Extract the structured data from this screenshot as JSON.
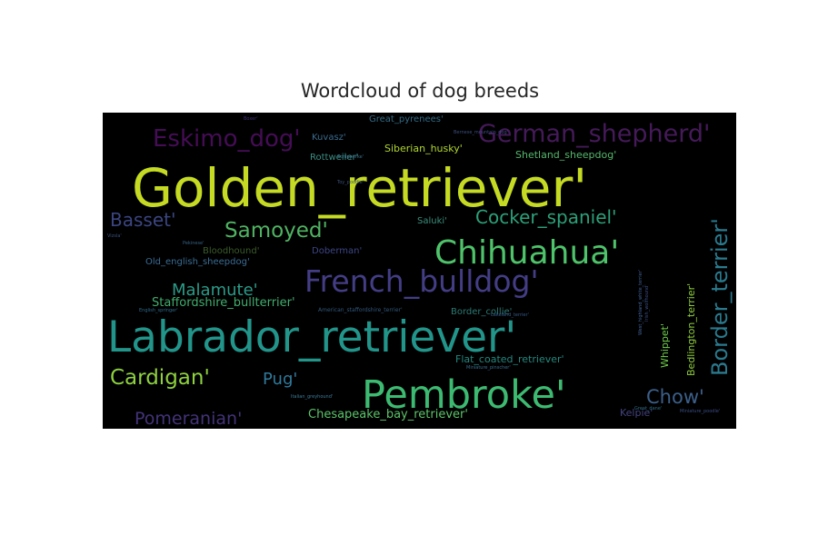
{
  "title": "Wordcloud of dog breeds",
  "colors": {
    "background": "#000000",
    "title": "#262626"
  },
  "chart_data": {
    "type": "wordcloud",
    "title": "Wordcloud of dog breeds",
    "words": [
      {
        "text": "Golden_retriever'",
        "weight": 1.0,
        "color": "#c4da23"
      },
      {
        "text": "Labrador_retriever'",
        "weight": 0.86,
        "color": "#22958b"
      },
      {
        "text": "Pembroke'",
        "weight": 0.74,
        "color": "#3dba71"
      },
      {
        "text": "Chihuahua'",
        "weight": 0.56,
        "color": "#4ec36a"
      },
      {
        "text": "French_bulldog'",
        "weight": 0.54,
        "color": "#433d85"
      },
      {
        "text": "German_shepherd'",
        "weight": 0.44,
        "color": "#451a59"
      },
      {
        "text": "Eskimo_dog'",
        "weight": 0.42,
        "color": "#450d55"
      },
      {
        "text": "Border_terrier'",
        "weight": 0.39,
        "color": "#2a7a8e"
      },
      {
        "text": "Samoyed'",
        "weight": 0.36,
        "color": "#4fb362"
      },
      {
        "text": "Cardigan'",
        "weight": 0.36,
        "color": "#8ed13f"
      },
      {
        "text": "Chow'",
        "weight": 0.33,
        "color": "#3b5f8a"
      },
      {
        "text": "Basset'",
        "weight": 0.32,
        "color": "#3a4580"
      },
      {
        "text": "Cocker_spaniel'",
        "weight": 0.31,
        "color": "#2ca07a"
      },
      {
        "text": "Pomeranian'",
        "weight": 0.3,
        "color": "#433378"
      },
      {
        "text": "Malamute'",
        "weight": 0.28,
        "color": "#2b9b88"
      },
      {
        "text": "Pug'",
        "weight": 0.28,
        "color": "#2f7a9c"
      },
      {
        "text": "Staffordshire_bullterrier'",
        "weight": 0.2,
        "color": "#41ad6e"
      },
      {
        "text": "Chesapeake_bay_retriever'",
        "weight": 0.2,
        "color": "#5cc46a"
      },
      {
        "text": "Bedlington_terrier'",
        "weight": 0.18,
        "color": "#90cf3c"
      },
      {
        "text": "Flat_coated_retriever'",
        "weight": 0.17,
        "color": "#23887e"
      },
      {
        "text": "Shetland_sheepdog'",
        "weight": 0.17,
        "color": "#54b86c"
      },
      {
        "text": "Siberian_husky'",
        "weight": 0.17,
        "color": "#b0d62f"
      },
      {
        "text": "Kelpie'",
        "weight": 0.17,
        "color": "#434380"
      },
      {
        "text": "Whippet'",
        "weight": 0.17,
        "color": "#6fcc4a"
      },
      {
        "text": "Kuvasz'",
        "weight": 0.16,
        "color": "#3b6b8d"
      },
      {
        "text": "Bloodhound'",
        "weight": 0.15,
        "color": "#3b5c2a"
      },
      {
        "text": "Doberman'",
        "weight": 0.15,
        "color": "#3d4585"
      },
      {
        "text": "Saluki'",
        "weight": 0.15,
        "color": "#3b8e7b"
      },
      {
        "text": "Border_collie'",
        "weight": 0.14,
        "color": "#2b7a73"
      },
      {
        "text": "Great_pyrenees'",
        "weight": 0.14,
        "color": "#336b85"
      },
      {
        "text": "Old_english_sheepdog'",
        "weight": 0.14,
        "color": "#3a6c94"
      },
      {
        "text": "Rottweiler'",
        "weight": 0.14,
        "color": "#3b8e84"
      },
      {
        "text": "American_staffordshire_terrier'",
        "weight": 0.08,
        "color": "#31577b"
      },
      {
        "text": "Bernese_mountain_dog'",
        "weight": 0.06,
        "color": "#3c4f80"
      },
      {
        "text": "Toy_poodle'",
        "weight": 0.06,
        "color": "#3a537a"
      },
      {
        "text": "Boxer'",
        "weight": 0.05,
        "color": "#40307a"
      },
      {
        "text": "English_springer'",
        "weight": 0.05,
        "color": "#2f6a8a"
      },
      {
        "text": "Italian_greyhound'",
        "weight": 0.05,
        "color": "#3c7e9b"
      },
      {
        "text": "Miniature_pinscher'",
        "weight": 0.05,
        "color": "#3a6e8e"
      },
      {
        "text": "Lakeland_terrier'",
        "weight": 0.05,
        "color": "#345a8a"
      },
      {
        "text": "Pekinese'",
        "weight": 0.05,
        "color": "#356386"
      },
      {
        "text": "Schipperke'",
        "weight": 0.05,
        "color": "#3b6f8a"
      },
      {
        "text": "Great_dane'",
        "weight": 0.05,
        "color": "#2f6d83"
      },
      {
        "text": "Vizsla'",
        "weight": 0.05,
        "color": "#3b507a"
      },
      {
        "text": "Irish_wolfhound'",
        "weight": 0.05,
        "color": "#3a4d85"
      },
      {
        "text": "West_highland_white_terrier'",
        "weight": 0.05,
        "color": "#42649a"
      },
      {
        "text": "Miniature_poodle'",
        "weight": 0.05,
        "color": "#3a4d87"
      }
    ]
  }
}
